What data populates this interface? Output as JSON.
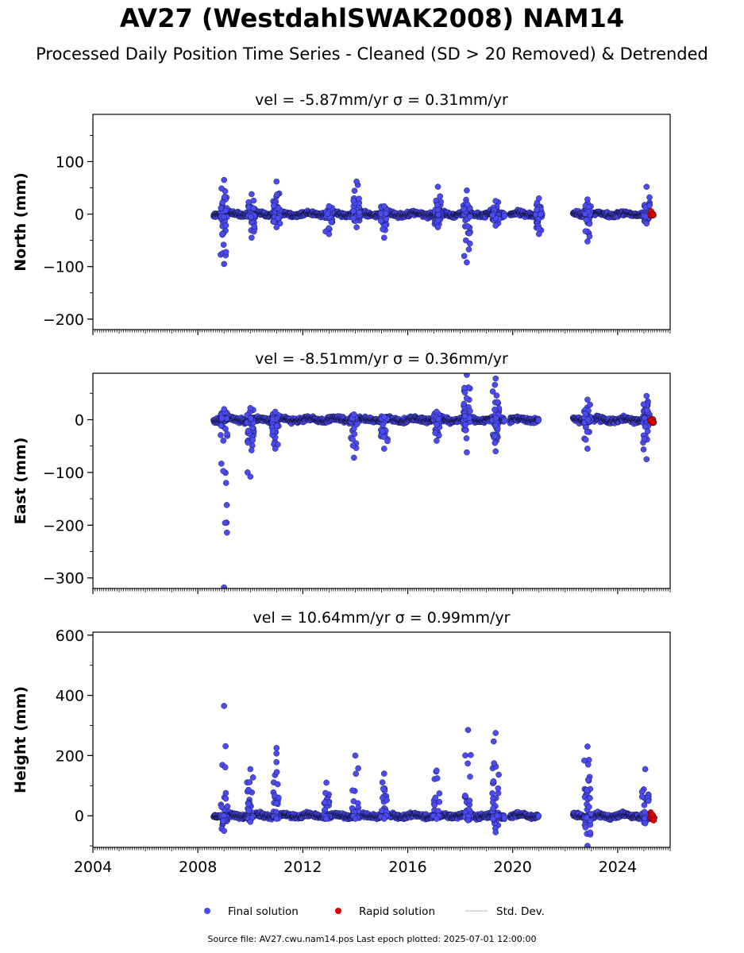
{
  "title": "AV27 (WestdahlSWAK2008) NAM14",
  "subtitle": "Processed Daily Position Time Series - Cleaned (SD > 20 Removed) & Detrended",
  "footer": "Source file: AV27.cwu.nam14.pos  Last epoch plotted: 2025-07-01 12:00:00",
  "colors": {
    "final": "#4b4bf5",
    "rapid": "#e00000",
    "stddev": "#cfcfcf"
  },
  "legend": {
    "final": "Final solution",
    "rapid": "Rapid solution",
    "stddev": "Std. Dev."
  },
  "chart_data": [
    {
      "type": "scatter",
      "title": "vel = -5.87mm/yr   σ = 0.31mm/yr",
      "ylabel": "North (mm)",
      "xlim": [
        2004.0,
        2026.0
      ],
      "ylim": [
        -220,
        190
      ],
      "yticks": [
        -200,
        -100,
        0,
        100
      ],
      "xticks": [
        2004,
        2008,
        2012,
        2016,
        2020,
        2024
      ],
      "segments": [
        [
          2008.6,
          2009.3
        ],
        [
          2009.3,
          2012.0
        ],
        [
          2012.0,
          2014.0
        ],
        [
          2014.0,
          2016.0
        ],
        [
          2016.0,
          2019.7
        ],
        [
          2019.9,
          2021.0
        ],
        [
          2022.3,
          2025.0
        ]
      ],
      "bursts": [
        [
          2009.0,
          -95,
          65
        ],
        [
          2010.05,
          -45,
          38
        ],
        [
          2011.0,
          -25,
          62
        ],
        [
          2013.0,
          -38,
          15
        ],
        [
          2014.05,
          -25,
          62
        ],
        [
          2015.1,
          -45,
          15
        ],
        [
          2017.15,
          -25,
          52
        ],
        [
          2018.25,
          -92,
          45
        ],
        [
          2019.35,
          -22,
          25
        ],
        [
          2021.0,
          -38,
          30
        ],
        [
          2022.85,
          -52,
          28
        ],
        [
          2025.1,
          -18,
          52
        ]
      ],
      "rapid": [
        [
          2025.25,
          2025.4,
          -3,
          6
        ]
      ]
    },
    {
      "type": "scatter",
      "title": "vel = -8.51mm/yr   σ = 0.36mm/yr",
      "ylabel": "East (mm)",
      "xlim": [
        2004.0,
        2026.0
      ],
      "ylim": [
        -320,
        88
      ],
      "yticks": [
        -300,
        -200,
        -100,
        0
      ],
      "xticks": [
        2004,
        2008,
        2012,
        2016,
        2020,
        2024
      ],
      "segments": [
        [
          2008.6,
          2009.3
        ],
        [
          2009.3,
          2012.0
        ],
        [
          2012.0,
          2014.0
        ],
        [
          2014.0,
          2016.0
        ],
        [
          2016.0,
          2019.7
        ],
        [
          2019.9,
          2021.0
        ],
        [
          2022.3,
          2025.0
        ]
      ],
      "bursts": [
        [
          2009.0,
          -318,
          20
        ],
        [
          2010.0,
          -108,
          22
        ],
        [
          2010.95,
          -55,
          15
        ],
        [
          2013.95,
          -72,
          10
        ],
        [
          2015.1,
          -55,
          5
        ],
        [
          2017.1,
          -40,
          15
        ],
        [
          2018.25,
          -62,
          85
        ],
        [
          2019.35,
          -60,
          78
        ],
        [
          2022.85,
          -55,
          38
        ],
        [
          2025.1,
          -75,
          45
        ]
      ],
      "rapid": [
        [
          2025.25,
          2025.4,
          -8,
          2
        ]
      ]
    },
    {
      "type": "scatter",
      "title": "vel = 10.64mm/yr   σ = 0.99mm/yr",
      "ylabel": "Height (mm)",
      "xlim": [
        2004.0,
        2026.0
      ],
      "ylim": [
        -105,
        610
      ],
      "yticks": [
        0,
        200,
        400,
        600
      ],
      "xticks": [
        2004,
        2008,
        2012,
        2016,
        2020,
        2024
      ],
      "segments": [
        [
          2008.6,
          2009.3
        ],
        [
          2009.3,
          2012.0
        ],
        [
          2012.0,
          2014.0
        ],
        [
          2014.0,
          2016.0
        ],
        [
          2016.0,
          2019.7
        ],
        [
          2019.9,
          2021.0
        ],
        [
          2022.3,
          2025.0
        ]
      ],
      "bursts": [
        [
          2009.0,
          -50,
          365
        ],
        [
          2010.0,
          -20,
          155
        ],
        [
          2011.0,
          -10,
          225
        ],
        [
          2012.9,
          -10,
          110
        ],
        [
          2014.0,
          -10,
          200
        ],
        [
          2015.1,
          -10,
          140
        ],
        [
          2017.1,
          -10,
          150
        ],
        [
          2018.3,
          -15,
          285
        ],
        [
          2019.35,
          -55,
          275
        ],
        [
          2022.85,
          -100,
          230
        ],
        [
          2025.05,
          -25,
          155
        ]
      ],
      "rapid": [
        [
          2025.25,
          2025.4,
          -20,
          15
        ]
      ]
    }
  ]
}
